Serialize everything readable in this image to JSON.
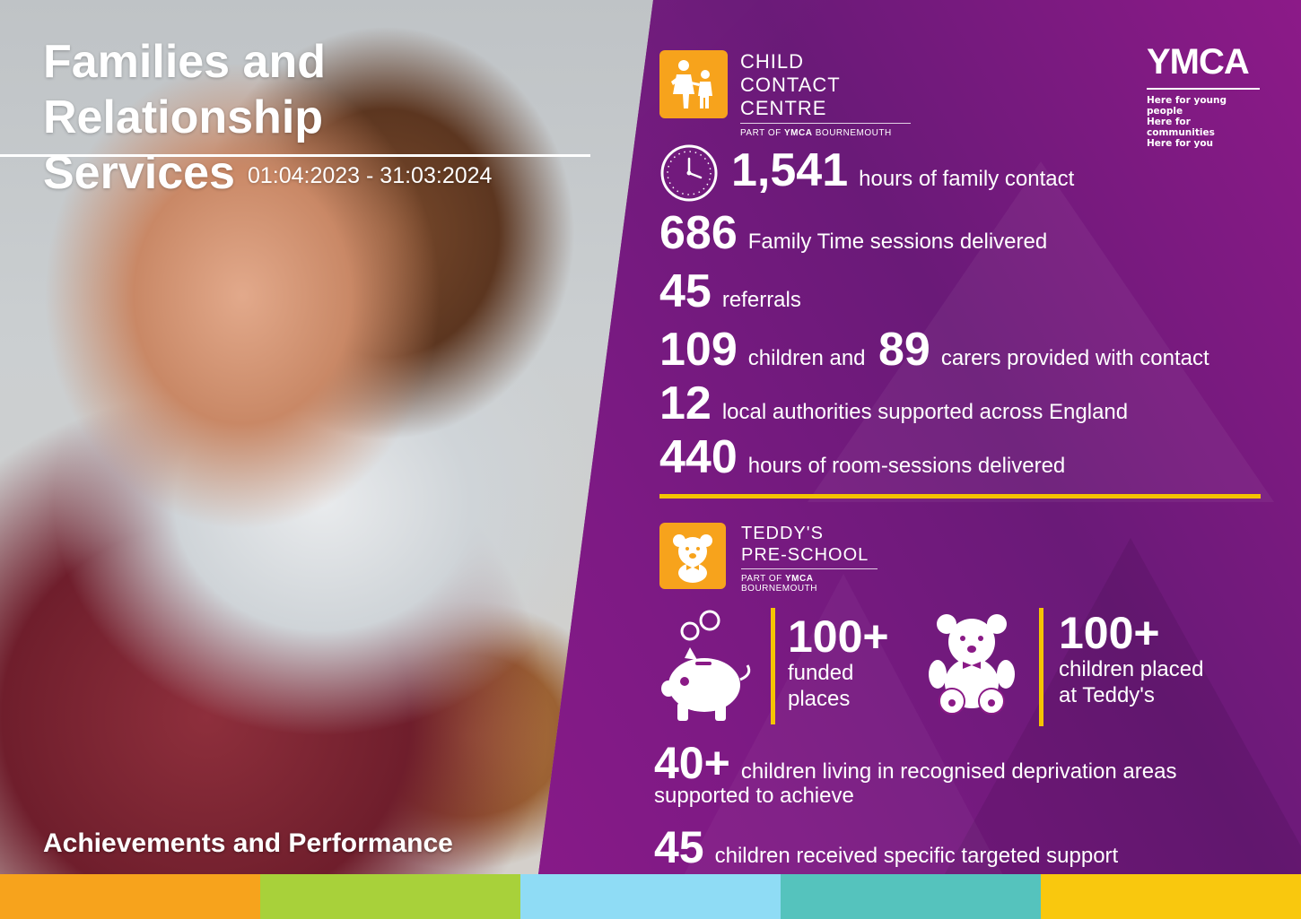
{
  "header": {
    "title_line1": "Families and Relationship",
    "title_line2": "Services",
    "date_range": "01:04:2023 - 31:03:2024"
  },
  "footer_label": "Achievements and Performance",
  "child_contact_centre": {
    "line1": "CHILD",
    "line2": "CONTACT CENTRE",
    "part_prefix": "PART OF",
    "part_brand": "YMCA",
    "part_suffix": "BOURNEMOUTH"
  },
  "ymca": {
    "word": "YMCA",
    "tagline": [
      "Here for young people",
      "Here for communities",
      "Here for you"
    ]
  },
  "contact_stats": [
    {
      "value": "1,541",
      "text": "hours of family contact"
    },
    {
      "value": "686",
      "text": "Family Time sessions delivered"
    },
    {
      "value": "45",
      "text": "referrals"
    },
    {
      "value": "109",
      "text": "children and",
      "value2": "89",
      "text2": "carers provided with contact"
    },
    {
      "value": "12",
      "text": "local authorities supported across England"
    },
    {
      "value": "440",
      "text": "hours of room-sessions delivered"
    }
  ],
  "teddys": {
    "line1": "TEDDY'S",
    "line2": "PRE-SCHOOL",
    "part_prefix": "PART OF",
    "part_brand": "YMCA",
    "part_suffix": "BOURNEMOUTH"
  },
  "preschool_stats": [
    {
      "value": "100+",
      "line1": "funded",
      "line2": "places"
    },
    {
      "value": "100+",
      "line1": "children placed",
      "line2": "at Teddy's"
    }
  ],
  "bottom_stats": [
    {
      "value": "40+",
      "text": "children living in recognised deprivation areas",
      "cont": "supported to achieve"
    },
    {
      "value": "45",
      "text": "children received specific targeted support"
    }
  ],
  "colors": {
    "strip": [
      "#f7a31c",
      "#a8d13a",
      "#8fdcf5",
      "#55c3bd",
      "#f9c80e"
    ],
    "accent_yellow": "#f5c400",
    "logo_orange": "#f7a31c"
  },
  "icons": [
    "clock-icon",
    "child-contact-logo-icon",
    "teddy-logo-icon",
    "piggy-bank-icon",
    "teddy-bear-icon"
  ]
}
